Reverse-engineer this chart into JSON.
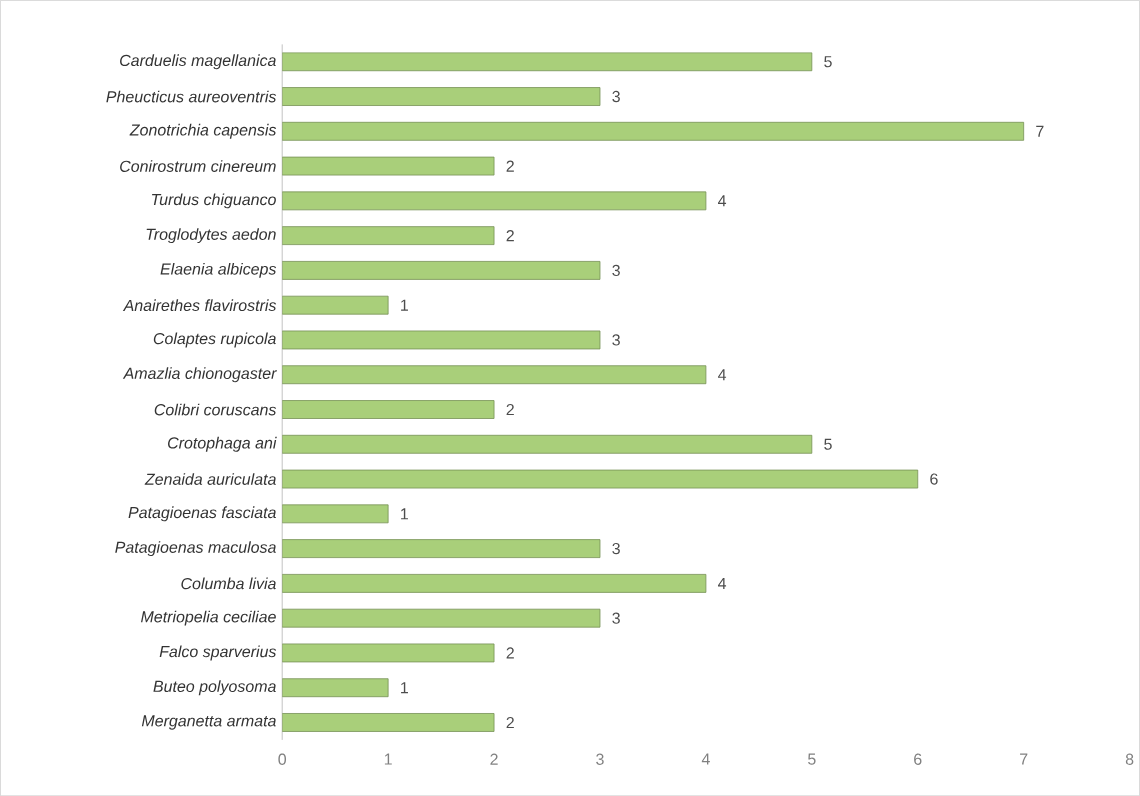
{
  "chart_data": {
    "type": "bar",
    "orientation": "horizontal",
    "categories": [
      "Carduelis magellanica",
      "Pheucticus aureoventris",
      "Zonotrichia capensis",
      "Conirostrum cinereum",
      "Turdus chiguanco",
      "Troglodytes aedon",
      "Elaenia albiceps",
      "Anairethes flavirostris",
      "Colaptes rupicola",
      "Amazlia chionogaster",
      "Colibri coruscans",
      "Crotophaga ani",
      "Zenaida auriculata",
      "Patagioenas fasciata",
      "Patagioenas maculosa",
      "Columba livia",
      "Metriopelia ceciliae",
      "Falco sparverius",
      "Buteo polyosoma",
      "Merganetta armata"
    ],
    "values": [
      5,
      3,
      7,
      2,
      4,
      2,
      3,
      1,
      3,
      4,
      2,
      5,
      6,
      1,
      3,
      4,
      3,
      2,
      1,
      2
    ],
    "color": "#a9cf7a",
    "xlim": [
      0,
      8
    ],
    "xticks": [
      0,
      1,
      2,
      3,
      4,
      5,
      6,
      7,
      8
    ],
    "data_labels": true
  }
}
